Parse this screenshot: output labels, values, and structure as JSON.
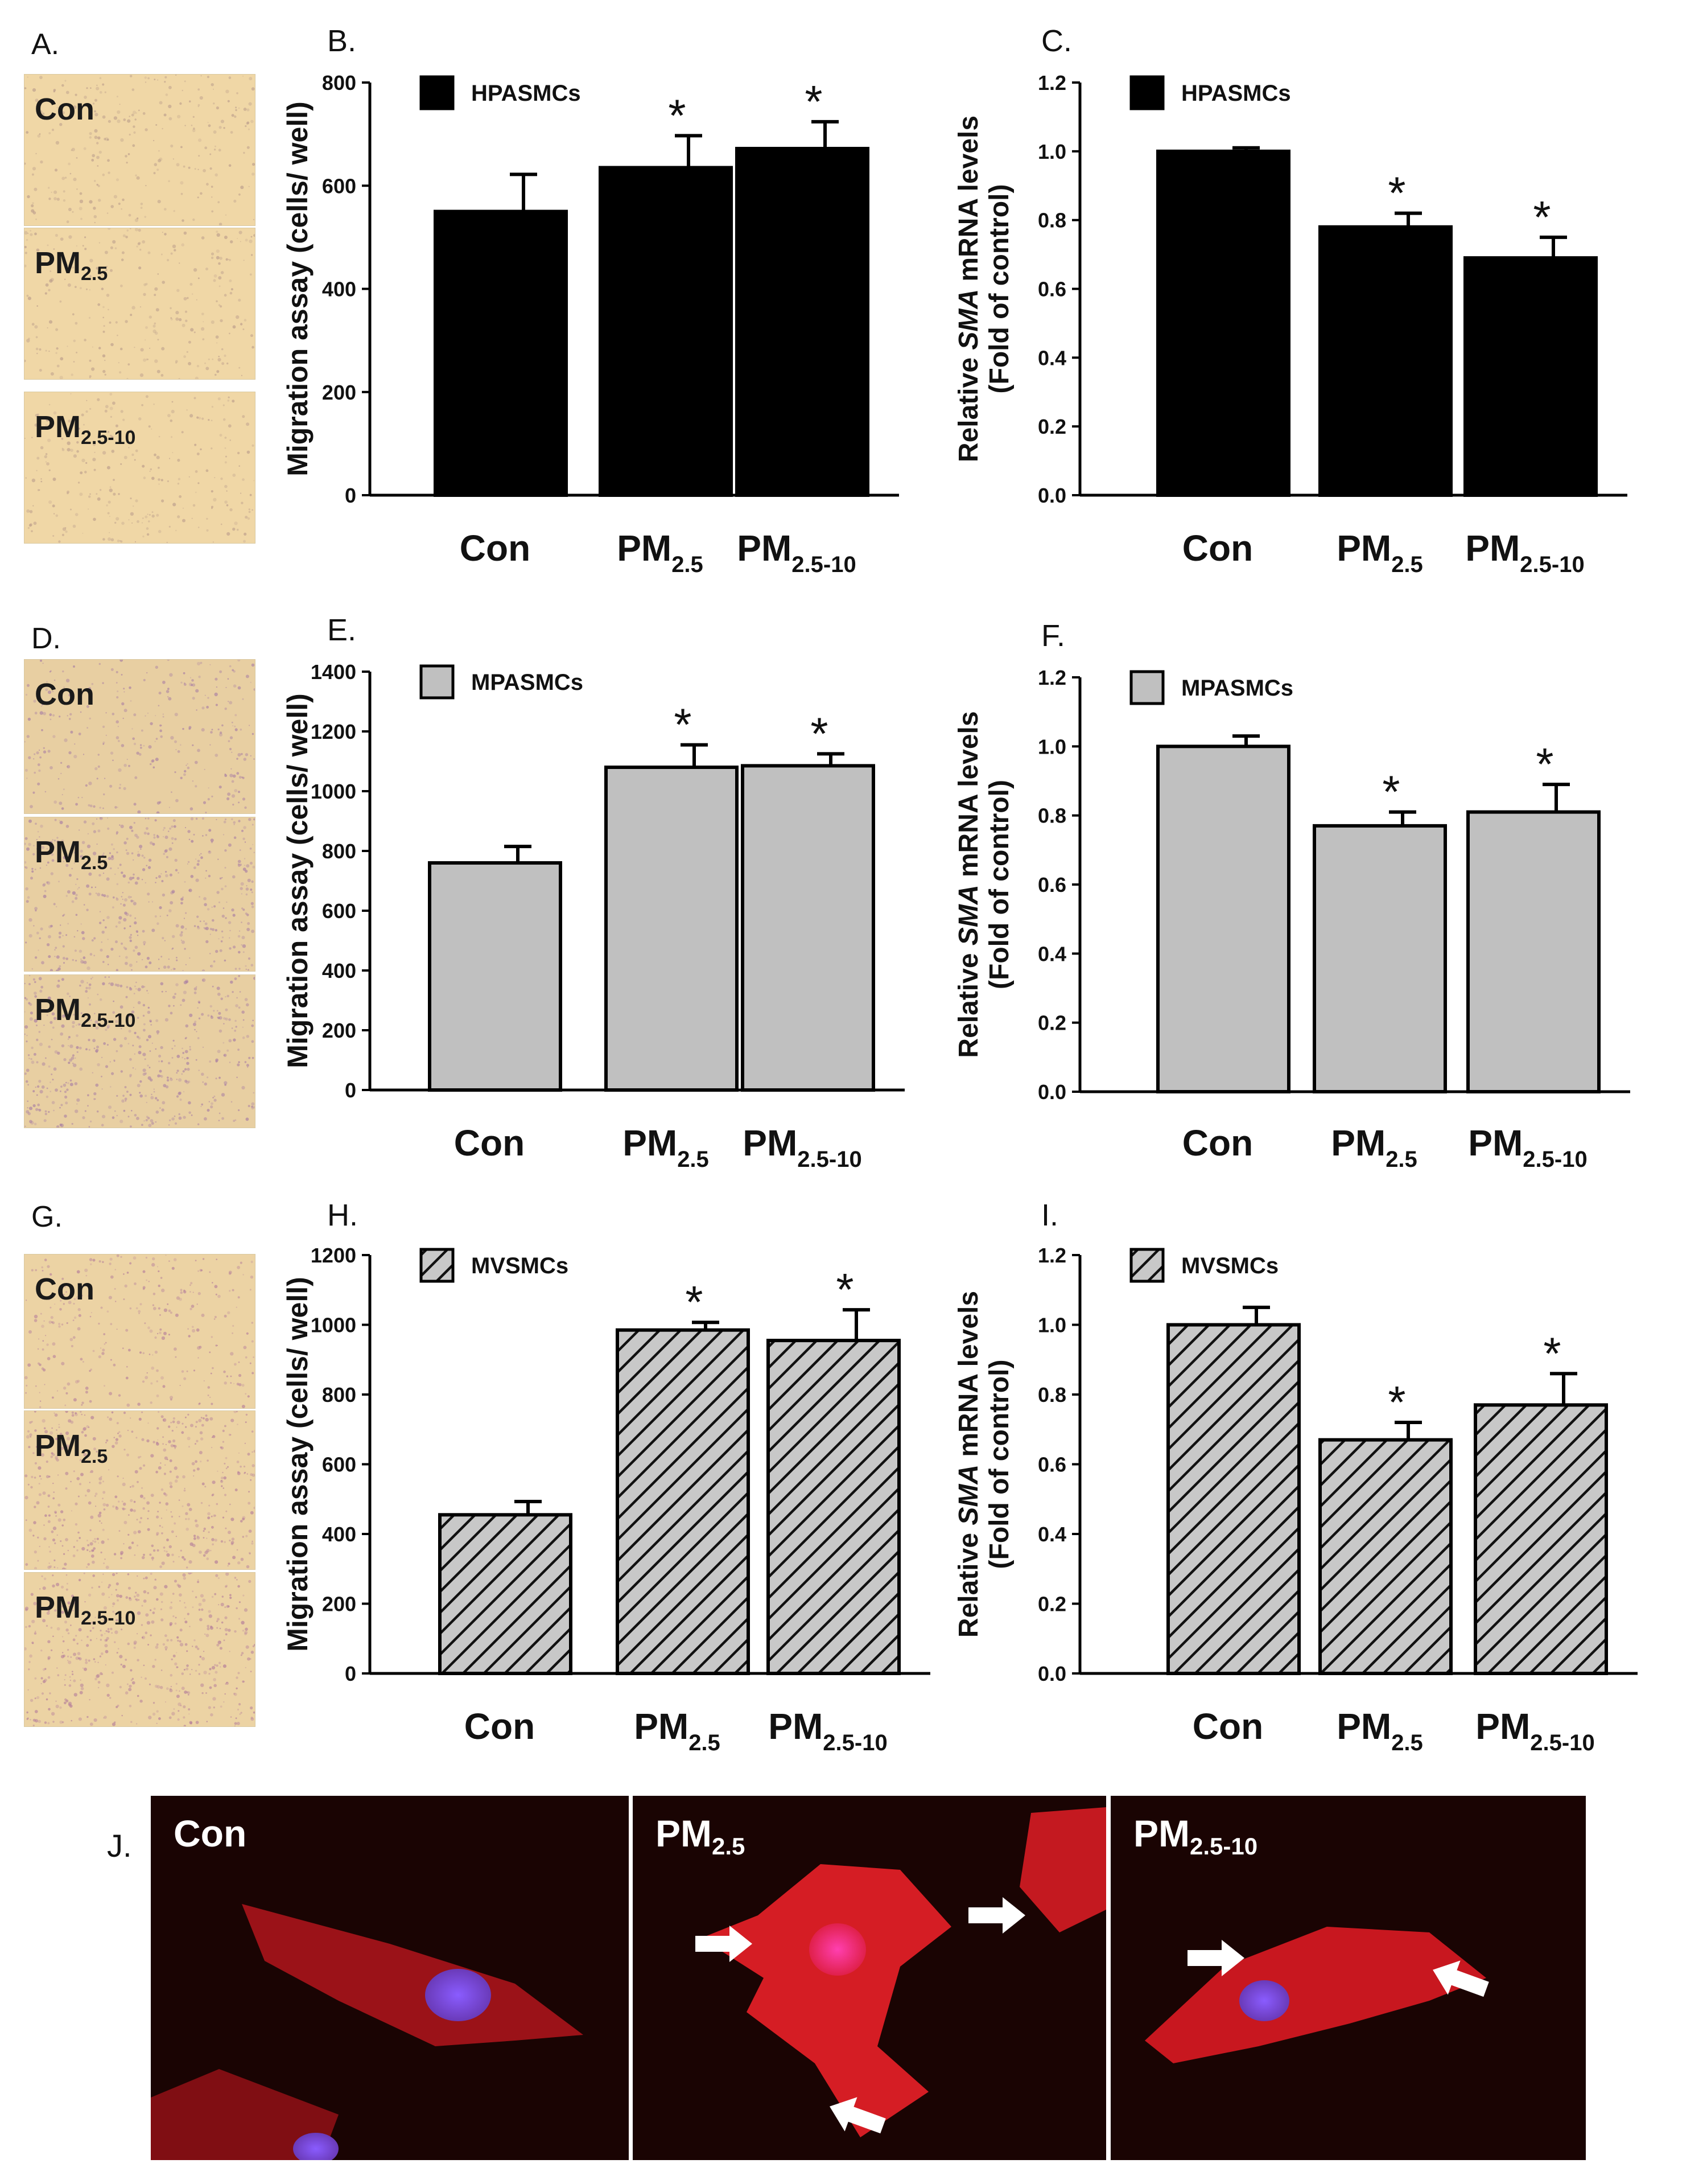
{
  "figure": {
    "micro_groups": [
      {
        "label": "A.",
        "tint": "#f0d7a6",
        "speck": "#b89a8a",
        "panels": [
          {
            "name": "Con",
            "sub": ""
          },
          {
            "name": "PM",
            "sub": "2.5"
          },
          {
            "name": "PM",
            "sub": "2.5-10"
          }
        ]
      },
      {
        "label": "D.",
        "tint": "#e8cfa2",
        "speck": "#a57aa3",
        "panels": [
          {
            "name": "Con",
            "sub": ""
          },
          {
            "name": "PM",
            "sub": "2.5"
          },
          {
            "name": "PM",
            "sub": "2.5-10"
          }
        ]
      },
      {
        "label": "G.",
        "tint": "#ecd3a4",
        "speck": "#b27a9a",
        "panels": [
          {
            "name": "Con",
            "sub": ""
          },
          {
            "name": "PM",
            "sub": "2.5"
          },
          {
            "name": "PM",
            "sub": "2.5-10"
          }
        ]
      }
    ],
    "fluorescence": {
      "label": "J.",
      "panels": [
        {
          "name": "Con",
          "sub": ""
        },
        {
          "name": "PM",
          "sub": "2.5"
        },
        {
          "name": "PM",
          "sub": "2.5-10"
        }
      ]
    }
  },
  "chart_data": [
    {
      "panel": "B.",
      "type": "bar",
      "legend": "HPASMCs",
      "fill": "solid-black",
      "categories": [
        {
          "main": "Con",
          "sub": ""
        },
        {
          "main": "PM",
          "sub": "2.5"
        },
        {
          "main": "PM",
          "sub": "2.5-10"
        }
      ],
      "values": [
        550,
        635,
        672
      ],
      "errors": [
        72,
        62,
        52
      ],
      "significant": [
        false,
        true,
        true
      ],
      "ylabel": "Migration assay (cells/ well)",
      "ylim": [
        0,
        800
      ],
      "yticks": [
        "0",
        "200",
        "400",
        "600",
        "800"
      ]
    },
    {
      "panel": "C.",
      "type": "bar",
      "legend": "HPASMCs",
      "fill": "solid-black",
      "categories": [
        {
          "main": "Con",
          "sub": ""
        },
        {
          "main": "PM",
          "sub": "2.5"
        },
        {
          "main": "PM",
          "sub": "2.5-10"
        }
      ],
      "values": [
        1.0,
        0.78,
        0.69
      ],
      "errors": [
        0.01,
        0.04,
        0.06
      ],
      "significant": [
        false,
        true,
        true
      ],
      "ylabel_line1": {
        "pre": "Relative ",
        "ital": "SMA",
        "post": " mRNA levels"
      },
      "ylabel_line2": "(Fold of control)",
      "ylim": [
        0,
        1.2
      ],
      "yticks": [
        "0.0",
        "0.2",
        "0.4",
        "0.6",
        "0.8",
        "1.0",
        "1.2"
      ]
    },
    {
      "panel": "E.",
      "type": "bar",
      "legend": "MPASMCs",
      "fill": "solid-gray",
      "categories": [
        {
          "main": "Con",
          "sub": ""
        },
        {
          "main": "PM",
          "sub": "2.5"
        },
        {
          "main": "PM",
          "sub": "2.5-10"
        }
      ],
      "values": [
        760,
        1080,
        1085
      ],
      "errors": [
        55,
        75,
        40
      ],
      "significant": [
        false,
        true,
        true
      ],
      "ylabel": "Migration assay (cells/ well)",
      "ylim": [
        0,
        1400
      ],
      "yticks": [
        "0",
        "200",
        "400",
        "600",
        "800",
        "1000",
        "1200",
        "1400"
      ]
    },
    {
      "panel": "F.",
      "type": "bar",
      "legend": "MPASMCs",
      "fill": "solid-gray",
      "categories": [
        {
          "main": "Con",
          "sub": ""
        },
        {
          "main": "PM",
          "sub": "2.5"
        },
        {
          "main": "PM",
          "sub": "2.5-10"
        }
      ],
      "values": [
        1.0,
        0.77,
        0.81
      ],
      "errors": [
        0.03,
        0.04,
        0.08
      ],
      "significant": [
        false,
        true,
        true
      ],
      "ylabel_line1": {
        "pre": "Relative ",
        "ital": "SMA",
        "post": " mRNA levels"
      },
      "ylabel_line2": "(Fold of control)",
      "ylim": [
        0,
        1.2
      ],
      "yticks": [
        "0.0",
        "0.2",
        "0.4",
        "0.6",
        "0.8",
        "1.0",
        "1.2"
      ]
    },
    {
      "panel": "H.",
      "type": "bar",
      "legend": "MVSMCs",
      "fill": "hatched",
      "categories": [
        {
          "main": "Con",
          "sub": ""
        },
        {
          "main": "PM",
          "sub": "2.5"
        },
        {
          "main": "PM",
          "sub": "2.5-10"
        }
      ],
      "values": [
        455,
        985,
        955
      ],
      "errors": [
        38,
        22,
        88
      ],
      "significant": [
        false,
        true,
        true
      ],
      "ylabel": "Migration assay (cells/ well)",
      "ylim": [
        0,
        1200
      ],
      "yticks": [
        "0",
        "200",
        "400",
        "600",
        "800",
        "1000",
        "1200"
      ]
    },
    {
      "panel": "I.",
      "type": "bar",
      "legend": "MVSMCs",
      "fill": "hatched",
      "categories": [
        {
          "main": "Con",
          "sub": ""
        },
        {
          "main": "PM",
          "sub": "2.5"
        },
        {
          "main": "PM",
          "sub": "2.5-10"
        }
      ],
      "values": [
        1.0,
        0.67,
        0.77
      ],
      "errors": [
        0.05,
        0.05,
        0.09
      ],
      "significant": [
        false,
        true,
        true
      ],
      "ylabel_line1": {
        "pre": "Relative ",
        "ital": "SMA",
        "post": " mRNA levels"
      },
      "ylabel_line2": "(Fold of control)",
      "ylim": [
        0,
        1.2
      ],
      "yticks": [
        "0.0",
        "0.2",
        "0.4",
        "0.6",
        "0.8",
        "1.0",
        "1.2"
      ]
    }
  ]
}
